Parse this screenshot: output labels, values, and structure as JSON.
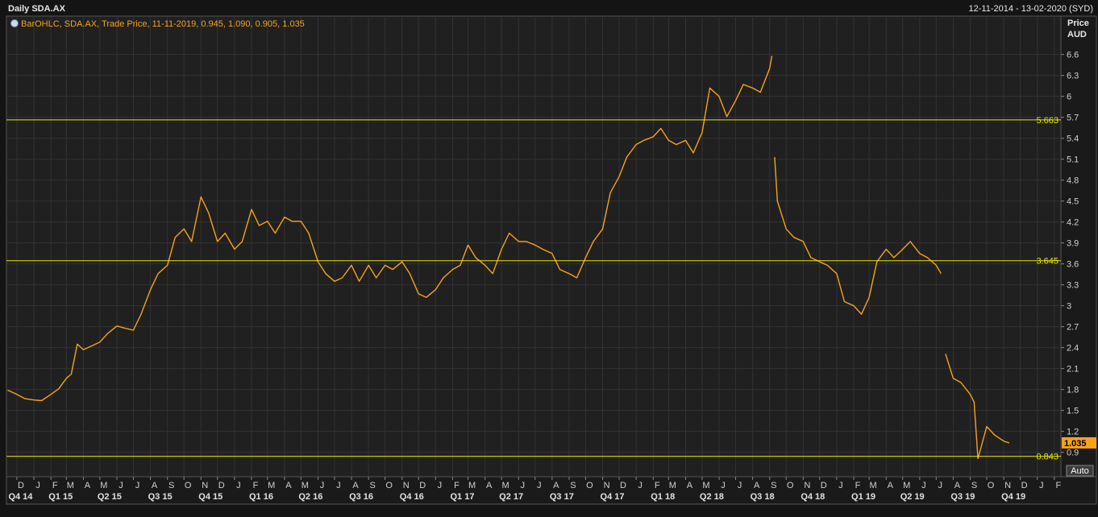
{
  "chart_data": {
    "type": "line",
    "title": "Daily SDA.AX",
    "date_range": "12-11-2014 - 13-02-2020 (SYD)",
    "ylabel": "Price",
    "yunit": "AUD",
    "auto_button": "Auto",
    "grid": true,
    "xlim": [
      "2014-11-12",
      "2020-02-13"
    ],
    "ylim": [
      0.55,
      7.15
    ],
    "yticks": [
      0.9,
      1.2,
      1.5,
      1.8,
      2.1,
      2.4,
      2.7,
      3,
      3.3,
      3.6,
      3.9,
      4.2,
      4.5,
      4.8,
      5.1,
      5.4,
      5.7,
      6,
      6.3,
      6.6
    ],
    "xticks": [
      {
        "value": "2014-12-01",
        "label": "D"
      },
      {
        "value": "2015-01-01",
        "label": "J"
      },
      {
        "value": "2015-02-01",
        "label": "F"
      },
      {
        "value": "2015-03-01",
        "label": "M"
      },
      {
        "value": "2015-04-01",
        "label": "A"
      },
      {
        "value": "2015-05-01",
        "label": "M"
      },
      {
        "value": "2015-06-01",
        "label": "J"
      },
      {
        "value": "2015-07-01",
        "label": "J"
      },
      {
        "value": "2015-08-01",
        "label": "A"
      },
      {
        "value": "2015-09-01",
        "label": "S"
      },
      {
        "value": "2015-10-01",
        "label": "O"
      },
      {
        "value": "2015-11-01",
        "label": "N"
      },
      {
        "value": "2015-12-01",
        "label": "D"
      },
      {
        "value": "2016-01-01",
        "label": "J"
      },
      {
        "value": "2016-02-01",
        "label": "F"
      },
      {
        "value": "2016-03-01",
        "label": "M"
      },
      {
        "value": "2016-04-01",
        "label": "A"
      },
      {
        "value": "2016-05-01",
        "label": "M"
      },
      {
        "value": "2016-06-01",
        "label": "J"
      },
      {
        "value": "2016-07-01",
        "label": "J"
      },
      {
        "value": "2016-08-01",
        "label": "A"
      },
      {
        "value": "2016-09-01",
        "label": "S"
      },
      {
        "value": "2016-10-01",
        "label": "O"
      },
      {
        "value": "2016-11-01",
        "label": "N"
      },
      {
        "value": "2016-12-01",
        "label": "D"
      },
      {
        "value": "2017-01-01",
        "label": "J"
      },
      {
        "value": "2017-02-01",
        "label": "F"
      },
      {
        "value": "2017-03-01",
        "label": "M"
      },
      {
        "value": "2017-04-01",
        "label": "A"
      },
      {
        "value": "2017-05-01",
        "label": "M"
      },
      {
        "value": "2017-06-01",
        "label": "J"
      },
      {
        "value": "2017-07-01",
        "label": "J"
      },
      {
        "value": "2017-08-01",
        "label": "A"
      },
      {
        "value": "2017-09-01",
        "label": "S"
      },
      {
        "value": "2017-10-01",
        "label": "O"
      },
      {
        "value": "2017-11-01",
        "label": "N"
      },
      {
        "value": "2017-12-01",
        "label": "D"
      },
      {
        "value": "2018-01-01",
        "label": "J"
      },
      {
        "value": "2018-02-01",
        "label": "F"
      },
      {
        "value": "2018-03-01",
        "label": "M"
      },
      {
        "value": "2018-04-01",
        "label": "A"
      },
      {
        "value": "2018-05-01",
        "label": "M"
      },
      {
        "value": "2018-06-01",
        "label": "J"
      },
      {
        "value": "2018-07-01",
        "label": "J"
      },
      {
        "value": "2018-08-01",
        "label": "A"
      },
      {
        "value": "2018-09-01",
        "label": "S"
      },
      {
        "value": "2018-10-01",
        "label": "O"
      },
      {
        "value": "2018-11-01",
        "label": "N"
      },
      {
        "value": "2018-12-01",
        "label": "D"
      },
      {
        "value": "2019-01-01",
        "label": "J"
      },
      {
        "value": "2019-02-01",
        "label": "F"
      },
      {
        "value": "2019-03-01",
        "label": "M"
      },
      {
        "value": "2019-04-01",
        "label": "A"
      },
      {
        "value": "2019-05-01",
        "label": "M"
      },
      {
        "value": "2019-06-01",
        "label": "J"
      },
      {
        "value": "2019-07-01",
        "label": "J"
      },
      {
        "value": "2019-08-01",
        "label": "A"
      },
      {
        "value": "2019-09-01",
        "label": "S"
      },
      {
        "value": "2019-10-01",
        "label": "O"
      },
      {
        "value": "2019-11-01",
        "label": "N"
      },
      {
        "value": "2019-12-01",
        "label": "D"
      },
      {
        "value": "2020-01-01",
        "label": "J"
      },
      {
        "value": "2020-02-01",
        "label": "F"
      }
    ],
    "quarter_labels": [
      {
        "value": "2014-11-20",
        "label": "Q4 14"
      },
      {
        "value": "2015-02-01",
        "label": "Q1 15"
      },
      {
        "value": "2015-05-01",
        "label": "Q2 15"
      },
      {
        "value": "2015-08-01",
        "label": "Q3 15"
      },
      {
        "value": "2015-11-01",
        "label": "Q4 15"
      },
      {
        "value": "2016-02-01",
        "label": "Q1 16"
      },
      {
        "value": "2016-05-01",
        "label": "Q2 16"
      },
      {
        "value": "2016-08-01",
        "label": "Q3 16"
      },
      {
        "value": "2016-11-01",
        "label": "Q4 16"
      },
      {
        "value": "2017-02-01",
        "label": "Q1 17"
      },
      {
        "value": "2017-05-01",
        "label": "Q2 17"
      },
      {
        "value": "2017-08-01",
        "label": "Q3 17"
      },
      {
        "value": "2017-11-01",
        "label": "Q4 17"
      },
      {
        "value": "2018-02-01",
        "label": "Q1 18"
      },
      {
        "value": "2018-05-01",
        "label": "Q2 18"
      },
      {
        "value": "2018-08-01",
        "label": "Q3 18"
      },
      {
        "value": "2018-11-01",
        "label": "Q4 18"
      },
      {
        "value": "2019-02-01",
        "label": "Q1 19"
      },
      {
        "value": "2019-05-01",
        "label": "Q2 19"
      },
      {
        "value": "2019-08-01",
        "label": "Q3 19"
      },
      {
        "value": "2019-11-01",
        "label": "Q4 19"
      }
    ],
    "hlines": [
      5.663,
      3.645,
      0.843
    ],
    "hline_color": "#e6e600",
    "last_price": 1.035,
    "x": [
      "2014-11-14",
      "2014-12-01",
      "2014-12-15",
      "2015-01-01",
      "2015-01-15",
      "2015-02-01",
      "2015-02-15",
      "2015-03-01",
      "2015-03-10",
      "2015-03-21",
      "2015-04-01",
      "2015-04-15",
      "2015-05-01",
      "2015-05-15",
      "2015-06-01",
      "2015-06-15",
      "2015-07-01",
      "2015-07-15",
      "2015-08-01",
      "2015-08-15",
      "2015-09-01",
      "2015-09-15",
      "2015-10-01",
      "2015-10-15",
      "2015-11-01",
      "2015-11-15",
      "2015-12-01",
      "2015-12-15",
      "2016-01-01",
      "2016-01-15",
      "2016-02-01",
      "2016-02-15",
      "2016-03-01",
      "2016-03-15",
      "2016-04-01",
      "2016-04-15",
      "2016-05-01",
      "2016-05-15",
      "2016-06-01",
      "2016-06-15",
      "2016-07-01",
      "2016-07-15",
      "2016-08-01",
      "2016-08-15",
      "2016-09-01",
      "2016-09-15",
      "2016-10-01",
      "2016-10-15",
      "2016-11-01",
      "2016-11-15",
      "2016-12-01",
      "2016-12-15",
      "2017-01-01",
      "2017-01-15",
      "2017-02-01",
      "2017-02-15",
      "2017-03-01",
      "2017-03-15",
      "2017-04-01",
      "2017-04-15",
      "2017-05-01",
      "2017-05-15",
      "2017-06-01",
      "2017-06-15",
      "2017-07-01",
      "2017-07-15",
      "2017-08-01",
      "2017-08-15",
      "2017-09-01",
      "2017-09-15",
      "2017-10-01",
      "2017-10-15",
      "2017-11-01",
      "2017-11-15",
      "2017-12-01",
      "2017-12-15",
      "2018-01-01",
      "2018-01-15",
      "2018-02-01",
      "2018-02-15",
      "2018-03-01",
      "2018-03-15",
      "2018-04-01",
      "2018-04-15",
      "2018-05-01",
      "2018-05-15",
      "2018-06-01",
      "2018-06-15",
      "2018-07-01",
      "2018-07-15",
      "2018-08-01",
      "2018-08-15",
      "2018-09-01",
      "2018-09-05",
      "2018-09-07",
      "2018-09-10",
      "2018-09-15",
      "2018-10-01",
      "2018-10-15",
      "2018-11-01",
      "2018-11-15",
      "2018-12-01",
      "2018-12-15",
      "2019-01-01",
      "2019-01-15",
      "2019-02-01",
      "2019-02-15",
      "2019-03-01",
      "2019-03-15",
      "2019-04-01",
      "2019-04-15",
      "2019-05-01",
      "2019-05-15",
      "2019-06-01",
      "2019-06-15",
      "2019-07-01",
      "2019-07-10",
      "2019-07-14",
      "2019-07-18",
      "2019-08-01",
      "2019-08-15",
      "2019-09-01",
      "2019-09-08",
      "2019-09-15",
      "2019-10-01",
      "2019-10-15",
      "2019-11-01",
      "2019-11-11"
    ],
    "series": [
      {
        "name": "BarOHLC, SDA.AX, Trade Price, 11-11-2019, 0.945, 1.090, 0.905, 1.035",
        "color": "#f7a21b",
        "values": [
          1.79,
          1.73,
          1.67,
          1.65,
          1.64,
          1.73,
          1.81,
          1.96,
          2.02,
          2.45,
          2.37,
          2.42,
          2.48,
          2.6,
          2.71,
          2.68,
          2.65,
          2.88,
          3.23,
          3.46,
          3.58,
          3.98,
          4.1,
          3.92,
          4.56,
          4.33,
          3.92,
          4.04,
          3.81,
          3.92,
          4.38,
          4.15,
          4.21,
          4.04,
          4.27,
          4.21,
          4.21,
          4.04,
          3.63,
          3.46,
          3.35,
          3.4,
          3.58,
          3.35,
          3.58,
          3.4,
          3.58,
          3.52,
          3.63,
          3.46,
          3.17,
          3.12,
          3.23,
          3.4,
          3.52,
          3.58,
          3.87,
          3.69,
          3.58,
          3.46,
          3.81,
          4.04,
          3.92,
          3.92,
          3.87,
          3.81,
          3.75,
          3.52,
          3.46,
          3.4,
          3.69,
          3.92,
          4.1,
          4.62,
          4.85,
          5.13,
          5.31,
          5.37,
          5.42,
          5.54,
          5.37,
          5.31,
          5.37,
          5.19,
          5.48,
          6.12,
          6.0,
          5.71,
          5.94,
          6.17,
          6.12,
          6.06,
          6.4,
          6.58,
          null,
          5.13,
          4.5,
          4.1,
          3.98,
          3.92,
          3.69,
          3.63,
          3.58,
          3.46,
          3.06,
          3.0,
          2.88,
          3.12,
          3.63,
          3.81,
          3.69,
          3.81,
          3.92,
          3.75,
          3.69,
          3.58,
          3.46,
          null,
          2.31,
          1.96,
          1.9,
          1.73,
          1.62,
          0.81,
          1.27,
          1.15,
          1.06,
          1.035
        ]
      }
    ]
  }
}
